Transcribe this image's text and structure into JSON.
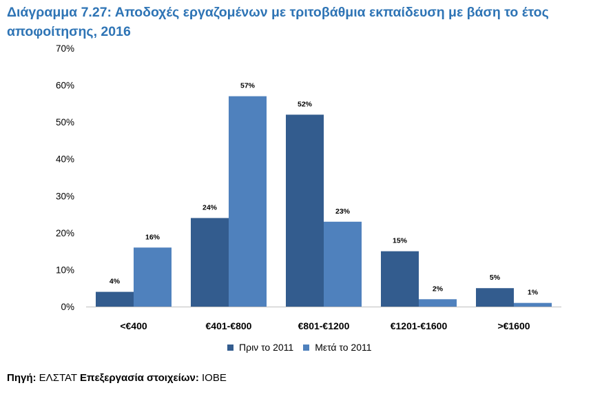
{
  "title_prefix": "Διάγραμμα 7.27",
  "title_text": ": Αποδοχές εργαζομένων με τριτοβάθμια εκπαίδευση με βάση το έτος αποφοίτησης, 2016",
  "source": {
    "label1": "Πηγή:",
    "value1": " ΕΛΣΤΑΤ ",
    "label2": "Επεξεργασία στοιχείων:",
    "value2": " ΙΟΒΕ"
  },
  "chart_data": {
    "type": "bar",
    "categories": [
      "<€400",
      "€401-€800",
      "€801-€1200",
      "€1201-€1600",
      ">€1600"
    ],
    "series": [
      {
        "name": "Πριν το 2011",
        "color": "#335c8e",
        "values": [
          4,
          24,
          52,
          15,
          5
        ],
        "labels": [
          "4%",
          "24%",
          "52%",
          "15%",
          "5%"
        ]
      },
      {
        "name": "Μετά το 2011",
        "color": "#4f81bd",
        "values": [
          16,
          57,
          23,
          2,
          1
        ],
        "labels": [
          "16%",
          "57%",
          "23%",
          "2%",
          "1%"
        ]
      }
    ],
    "ylim": [
      0,
      70
    ],
    "yticks": [
      "0%",
      "10%",
      "20%",
      "30%",
      "40%",
      "50%",
      "60%",
      "70%"
    ],
    "grid": false,
    "legend_position": "bottom"
  }
}
